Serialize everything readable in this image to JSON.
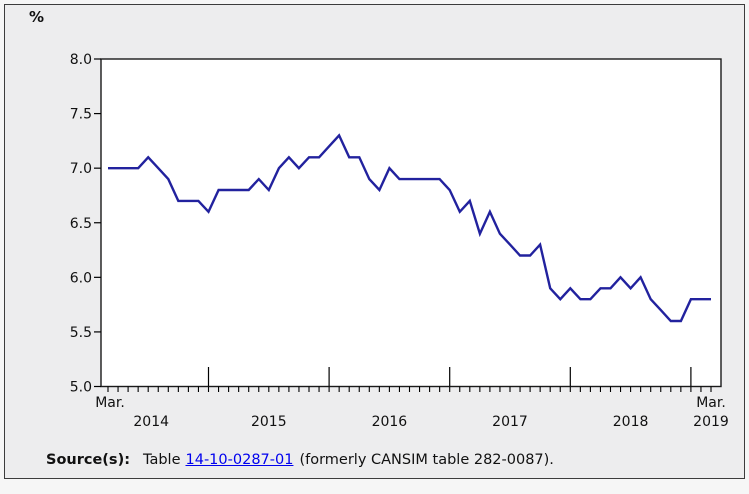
{
  "unit_label": "%",
  "axis": {
    "x_start_month": "Mar.",
    "x_end_month": "Mar.",
    "years": [
      "2014",
      "2015",
      "2016",
      "2017",
      "2018",
      "2019"
    ]
  },
  "source": {
    "label": "Source(s):",
    "text_before_link": "Table",
    "link_text": "14-10-0287-01",
    "text_after_link": "(formerly CANSIM table 282-0087)."
  },
  "colors": {
    "line": "#22229e",
    "plot_background": "#ffffff",
    "figure_background": "#ededee",
    "page_background": "#f6f6f6",
    "axis": "#000000",
    "link": "#4c6480"
  },
  "chart_data": {
    "type": "line",
    "title": "",
    "ylabel": "%",
    "xlabel": "",
    "ylim": [
      5.0,
      8.0
    ],
    "ytick_step": 0.5,
    "yticks": [
      "5.0",
      "5.5",
      "6.0",
      "6.5",
      "7.0",
      "7.5",
      "8.0"
    ],
    "grid": false,
    "legend_position": "none",
    "frequency": "monthly",
    "x_start": "Mar. 2014",
    "x_end": "Mar. 2019",
    "x_major_ticks": "January of each year",
    "x_major_tick_indices": [
      10,
      22,
      34,
      46,
      58
    ],
    "series": [
      {
        "start": "2014-03",
        "end": "2019-03",
        "values": [
          7.0,
          7.0,
          7.0,
          7.0,
          7.1,
          7.0,
          6.9,
          6.7,
          6.7,
          6.7,
          6.6,
          6.8,
          6.8,
          6.8,
          6.8,
          6.9,
          6.8,
          7.0,
          7.1,
          7.0,
          7.1,
          7.1,
          7.2,
          7.3,
          7.1,
          7.1,
          6.9,
          6.8,
          7.0,
          6.9,
          6.9,
          6.9,
          6.9,
          6.9,
          6.8,
          6.6,
          6.7,
          6.4,
          6.6,
          6.4,
          6.3,
          6.2,
          6.2,
          6.3,
          5.9,
          5.8,
          5.9,
          5.8,
          5.8,
          5.9,
          5.9,
          6.0,
          5.9,
          6.0,
          5.8,
          5.7,
          5.6,
          5.6,
          5.8,
          5.8,
          5.8
        ]
      }
    ]
  }
}
